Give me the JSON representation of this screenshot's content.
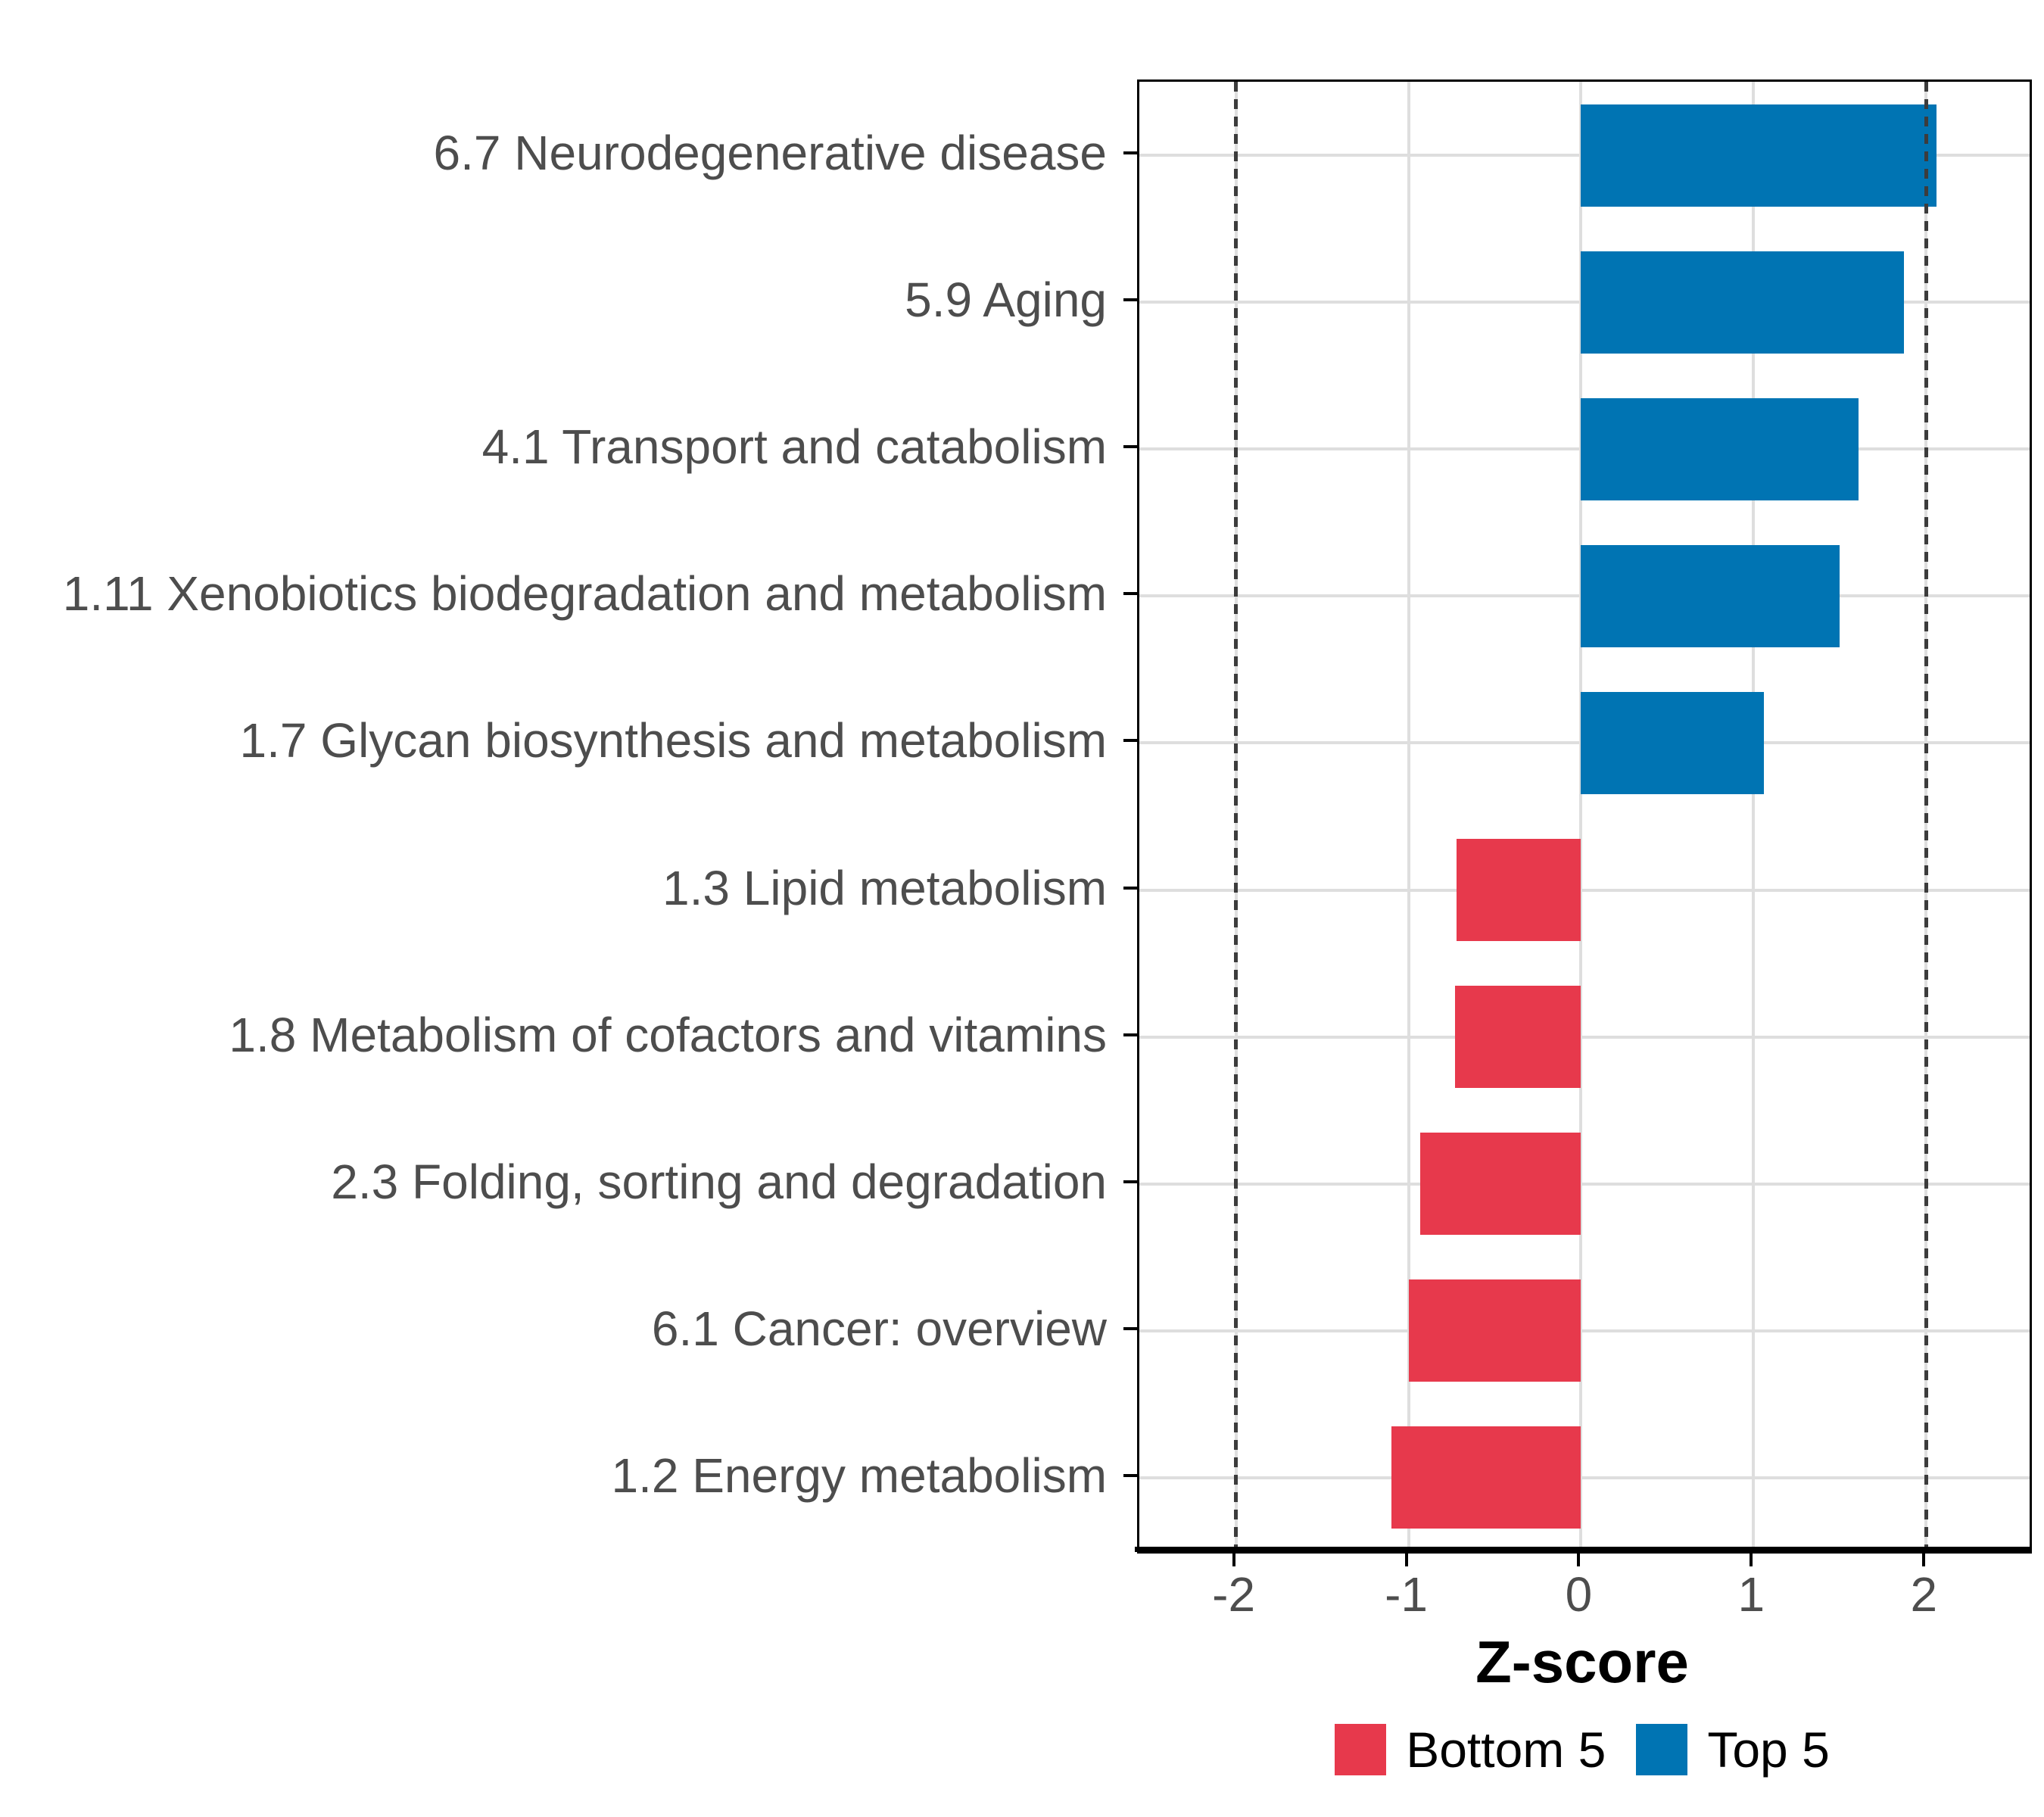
{
  "chart_data": {
    "type": "bar",
    "orientation": "horizontal",
    "title": "",
    "xlabel": "Z-score",
    "ylabel": "",
    "categories": [
      "6.7 Neurodegenerative disease",
      "5.9 Aging",
      "4.1 Transport and catabolism",
      "1.11 Xenobiotics biodegradation and metabolism",
      "1.7 Glycan biosynthesis and metabolism",
      "1.3 Lipid metabolism",
      "1.8 Metabolism of cofactors and vitamins",
      "2.3 Folding, sorting and degradation",
      "6.1 Cancer: overview",
      "1.2 Energy metabolism"
    ],
    "values": [
      2.06,
      1.87,
      1.61,
      1.5,
      1.06,
      -0.72,
      -0.73,
      -0.93,
      -1.0,
      -1.1
    ],
    "groups": [
      "Top 5",
      "Top 5",
      "Top 5",
      "Top 5",
      "Top 5",
      "Bottom 5",
      "Bottom 5",
      "Bottom 5",
      "Bottom 5",
      "Bottom 5"
    ],
    "series_colors": {
      "Top 5": "#0074B3",
      "Bottom 5": "#E7394C"
    },
    "xlim": [
      -2.56,
      2.6
    ],
    "x_ticks": [
      -2,
      -1,
      0,
      1,
      2
    ],
    "x_tick_labels": [
      "-2",
      "-1",
      "0",
      "1",
      "2"
    ],
    "reference_lines": [
      -2,
      2
    ],
    "reference_line_style": "dotted",
    "reference_line_color": "#3C3C3C",
    "grid": true,
    "grid_color": "#DEDEDE",
    "legend_position": "bottom"
  },
  "legend": {
    "items": [
      {
        "label": "Bottom 5",
        "color": "#E7394C"
      },
      {
        "label": "Top 5",
        "color": "#0074B3"
      }
    ]
  }
}
